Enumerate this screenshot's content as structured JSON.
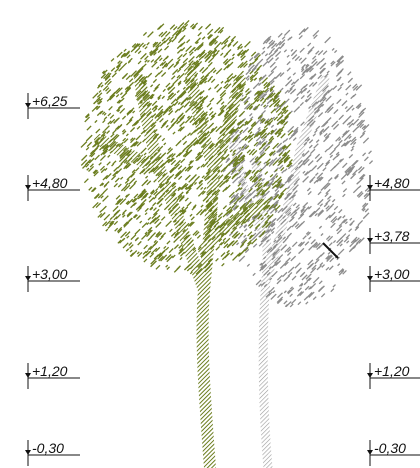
{
  "left_levels": [
    "+6,25",
    "+4,80",
    "+3,00",
    "+1,20",
    "-0,30"
  ],
  "right_levels": [
    "+4,80",
    "+3,78",
    "+3,00",
    "+1,20",
    "-0,30"
  ]
}
